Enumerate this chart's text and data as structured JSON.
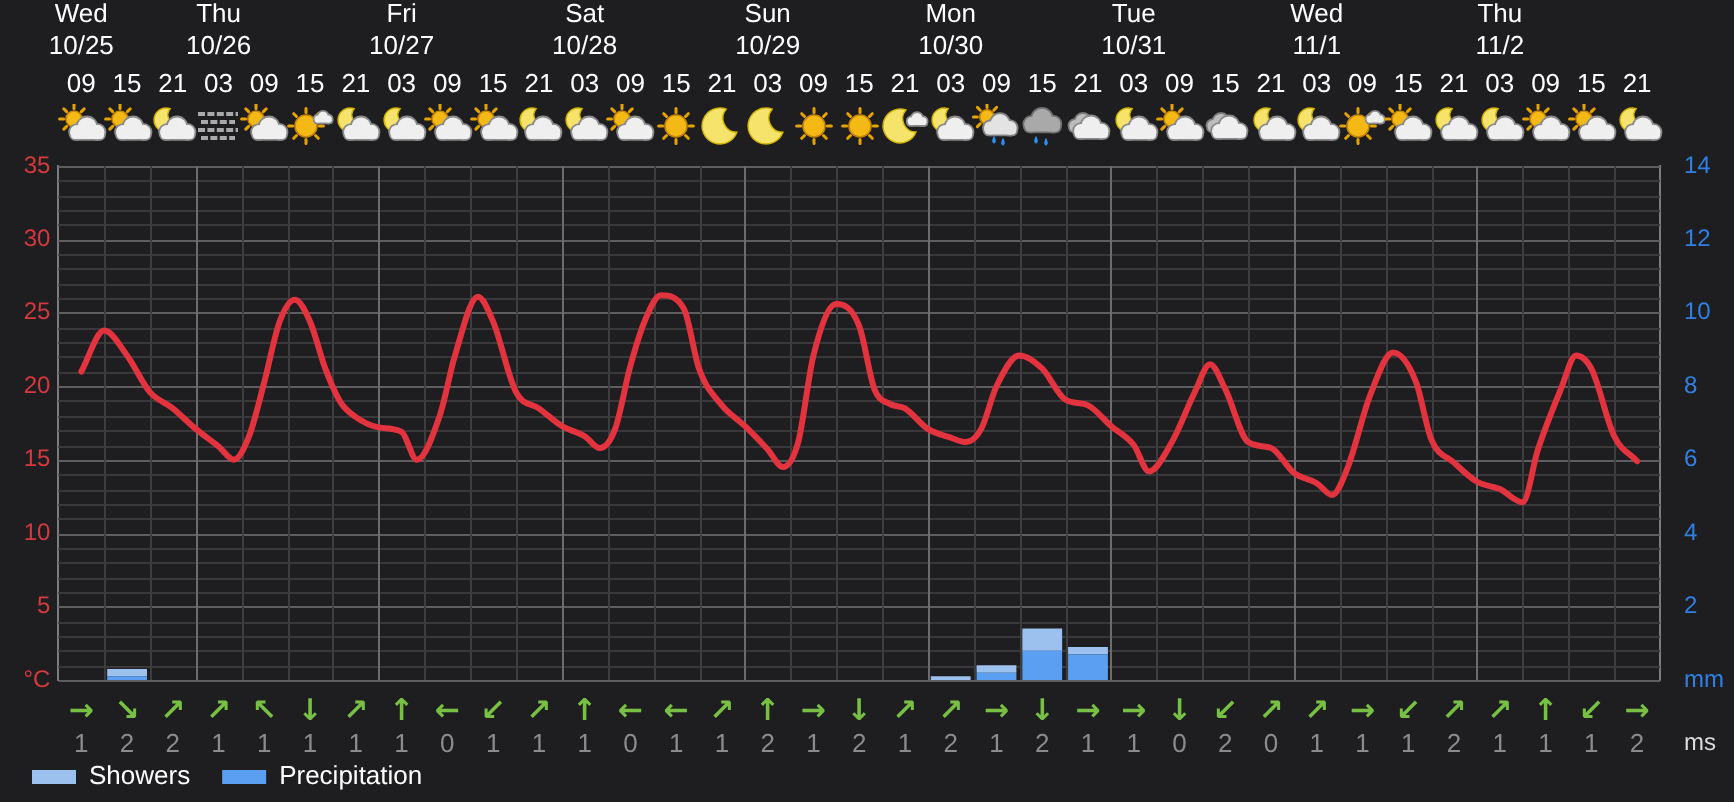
{
  "chart_data": [
    {
      "type": "bar",
      "stacked": true,
      "x": [
        "--10-25T09:00",
        "--10-25T15:00",
        "--10-25T21:00",
        "--10-26T03:00",
        "--10-26T09:00",
        "--10-26T15:00",
        "--10-26T21:00",
        "--10-27T03:00",
        "--10-27T09:00",
        "--10-27T15:00",
        "--10-27T21:00",
        "--10-28T03:00",
        "--10-28T09:00",
        "--10-28T15:00",
        "--10-28T21:00",
        "--10-29T03:00",
        "--10-29T09:00",
        "--10-29T15:00",
        "--10-29T21:00",
        "--10-30T03:00",
        "--10-30T09:00",
        "--10-30T15:00",
        "--10-30T21:00",
        "--10-31T03:00",
        "--10-31T09:00",
        "--10-31T15:00",
        "--10-31T21:00",
        "--11-01T03:00",
        "--11-01T09:00",
        "--11-01T15:00",
        "--11-01T21:00",
        "--11-02T03:00",
        "--11-02T09:00",
        "--11-02T15:00",
        "--11-02T21:00"
      ],
      "series": [
        {
          "name": "Precipitation",
          "color": "#5b9ff2",
          "axis": "y2",
          "values": [
            0,
            0.1,
            0,
            0,
            0,
            0,
            0,
            0,
            0,
            0,
            0,
            0,
            0,
            0,
            0,
            0,
            0,
            0,
            0,
            0,
            0.2,
            0.8,
            0.7,
            0,
            0,
            0,
            0,
            0,
            0,
            0,
            0,
            0,
            0,
            0,
            0
          ]
        },
        {
          "name": "Showers",
          "color": "#9dc1ee",
          "axis": "y2",
          "values": [
            0,
            0.2,
            0,
            0,
            0,
            0,
            0,
            0,
            0,
            0,
            0,
            0,
            0,
            0,
            0,
            0,
            0,
            0,
            0,
            0.1,
            0.2,
            0.6,
            0.2,
            0,
            0,
            0,
            0,
            0,
            0,
            0,
            0,
            0,
            0,
            0,
            0
          ]
        },
        {
          "type": "line",
          "color": "#e2333f",
          "x": [
            "--10-25T09:00",
            "--10-25T12:00",
            "--10-25T15:00",
            "--10-25T18:00",
            "--10-25T21:00",
            "--10-26T00:00",
            "--10-26T03:00",
            "--10-26T05:00",
            "--10-26T07:00",
            "--10-26T09:00",
            "--10-26T11:00",
            "--10-26T13:00",
            "--10-26T15:00",
            "--10-26T17:00",
            "--10-26T19:00",
            "--10-26T21:00",
            "--10-27T00:00",
            "--10-27T03:00",
            "--10-27T05:00",
            "--10-27T08:00",
            "--10-27T10:00",
            "--10-27T13:00",
            "--10-27T15:00",
            "--10-27T18:00",
            "--10-27T21:00",
            "--10-28T00:00",
            "--10-28T03:00",
            "--10-28T05:00",
            "--10-28T07:00",
            "--10-28T09:00",
            "--10-28T11:00",
            "--10-28T13:00",
            "--10-28T16:00",
            "--10-28T18:00",
            "--10-28T21:00",
            "--10-29T00:00",
            "--10-29T03:00",
            "--10-29T05:00",
            "--10-29T07:00",
            "--10-29T09:00",
            "--10-29T12:00",
            "--10-29T15:00",
            "--10-29T17:00",
            "--10-29T19:00",
            "--10-29T21:00",
            "--10-30T00:00",
            "--10-30T03:00",
            "--10-30T05:00",
            "--10-30T07:00",
            "--10-30T09:00",
            "--10-30T12:00",
            "--10-30T15:00",
            "--10-30T18:00",
            "--10-30T21:00",
            "--10-31T00:00",
            "--10-31T03:00",
            "--10-31T05:00",
            "--10-31T08:00",
            "--10-31T11:00",
            "--10-31T13:00",
            "--10-31T15:00",
            "--10-31T18:00",
            "--10-31T21:00",
            "--11-01T00:00",
            "--11-01T03:00",
            "--11-01T05:00",
            "--11-01T07:00",
            "--11-01T10:00",
            "--11-01T13:00",
            "--11-01T16:00",
            "--11-01T18:00",
            "--11-01T21:00",
            "--11-02T00:00",
            "--11-02T03:00",
            "--11-02T06:00",
            "--11-02T08:00",
            "--11-02T11:00",
            "--11-02T13:00",
            "--11-02T15:00",
            "--11-02T18:00",
            "--11-02T21:00"
          ],
          "values": [
            21.0,
            23.8,
            22.1,
            19.6,
            18.5,
            17.1,
            15.9,
            15.0,
            16.6,
            20.3,
            24.4,
            25.9,
            24.4,
            21.2,
            18.9,
            17.9,
            17.2,
            16.9,
            15.0,
            18.0,
            22.1,
            26.1,
            24.4,
            19.6,
            18.5,
            17.3,
            16.6,
            15.8,
            17.1,
            21.4,
            24.6,
            26.2,
            25.3,
            21.2,
            18.7,
            17.3,
            15.7,
            14.5,
            16.2,
            22.1,
            25.6,
            24.1,
            19.8,
            18.8,
            18.5,
            17.1,
            16.5,
            16.2,
            17.1,
            20.0,
            22.1,
            21.2,
            19.1,
            18.7,
            17.3,
            16.0,
            14.2,
            16.2,
            19.6,
            21.5,
            19.8,
            16.2,
            15.8,
            14.1,
            13.4,
            12.6,
            14.4,
            19.4,
            22.3,
            20.3,
            16.4,
            14.8,
            13.5,
            13.0,
            12.1,
            15.7,
            19.8,
            22.1,
            21.2,
            16.6,
            14.9
          ]
        }
      ],
      "xlim": [
        "--10-25T06:00",
        "--11-03T00:00"
      ],
      "xticks": [
        {
          "value": "--10-25T09:00",
          "label": "09"
        },
        {
          "value": "--10-25T15:00",
          "label": "15"
        },
        {
          "value": "--10-25T21:00",
          "label": "21"
        },
        {
          "value": "--10-26T03:00",
          "label": "03"
        },
        {
          "value": "--10-26T09:00",
          "label": "09"
        },
        {
          "value": "--10-26T15:00",
          "label": "15"
        },
        {
          "value": "--10-26T21:00",
          "label": "21"
        },
        {
          "value": "--10-27T03:00",
          "label": "03"
        },
        {
          "value": "--10-27T09:00",
          "label": "09"
        },
        {
          "value": "--10-27T15:00",
          "label": "15"
        },
        {
          "value": "--10-27T21:00",
          "label": "21"
        },
        {
          "value": "--10-28T03:00",
          "label": "03"
        },
        {
          "value": "--10-28T09:00",
          "label": "09"
        },
        {
          "value": "--10-28T15:00",
          "label": "15"
        },
        {
          "value": "--10-28T21:00",
          "label": "21"
        },
        {
          "value": "--10-29T03:00",
          "label": "03"
        },
        {
          "value": "--10-29T09:00",
          "label": "09"
        },
        {
          "value": "--10-29T15:00",
          "label": "15"
        },
        {
          "value": "--10-29T21:00",
          "label": "21"
        },
        {
          "value": "--10-30T03:00",
          "label": "03"
        },
        {
          "value": "--10-30T09:00",
          "label": "09"
        },
        {
          "value": "--10-30T15:00",
          "label": "15"
        },
        {
          "value": "--10-30T21:00",
          "label": "21"
        },
        {
          "value": "--10-31T03:00",
          "label": "03"
        },
        {
          "value": "--10-31T09:00",
          "label": "09"
        },
        {
          "value": "--10-31T15:00",
          "label": "15"
        },
        {
          "value": "--10-31T21:00",
          "label": "21"
        },
        {
          "value": "--11-01T03:00",
          "label": "03"
        },
        {
          "value": "--11-01T09:00",
          "label": "09"
        },
        {
          "value": "--11-01T15:00",
          "label": "15"
        },
        {
          "value": "--11-01T21:00",
          "label": "21"
        },
        {
          "value": "--11-02T03:00",
          "label": "03"
        },
        {
          "value": "--11-02T09:00",
          "label": "09"
        },
        {
          "value": "--11-02T15:00",
          "label": "15"
        },
        {
          "value": "--11-02T21:00",
          "label": "21"
        }
      ],
      "x2lim": [
        "--10-25T06:00",
        "--11-03T00:00"
      ],
      "x2ticks": [
        {
          "value": "--10-25T09:00",
          "label": "Wed\n10/25"
        },
        {
          "value": "--10-26T03:00",
          "label": "Thu\n10/26"
        },
        {
          "value": "--10-27T03:00",
          "label": "Fri\n10/27"
        },
        {
          "value": "--10-28T03:00",
          "label": "Sat\n10/28"
        },
        {
          "value": "--10-29T03:00",
          "label": "Sun\n10/29"
        },
        {
          "value": "--10-30T03:00",
          "label": "Mon\n10/30"
        },
        {
          "value": "--10-31T03:00",
          "label": "Tue\n10/31"
        },
        {
          "value": "--11-01T03:00",
          "label": "Wed\n11/1"
        },
        {
          "value": "--11-02T03:00",
          "label": "Thu\n11/2"
        }
      ],
      "ylim": [
        0,
        35
      ],
      "yticks": [
        {
          "value": 0,
          "label": "°C"
        },
        {
          "value": 1,
          "label": null
        },
        {
          "value": 2,
          "label": null
        },
        {
          "value": 3,
          "label": null
        },
        {
          "value": 4,
          "label": null
        },
        5,
        {
          "value": 6,
          "label": null
        },
        {
          "value": 7,
          "label": null
        },
        {
          "value": 8,
          "label": null
        },
        {
          "value": 9,
          "label": null
        },
        10,
        {
          "value": 11,
          "label": null
        },
        {
          "value": 12,
          "label": null
        },
        {
          "value": 13,
          "label": null
        },
        {
          "value": 14,
          "label": null
        },
        15,
        {
          "value": 16,
          "label": null
        },
        {
          "value": 17,
          "label": null
        },
        {
          "value": 18,
          "label": null
        },
        {
          "value": 19,
          "label": null
        },
        20,
        {
          "value": 21,
          "label": null
        },
        {
          "value": 22,
          "label": null
        },
        {
          "value": 23,
          "label": null
        },
        {
          "value": 24,
          "label": null
        },
        25,
        {
          "value": 26,
          "label": null
        },
        {
          "value": 27,
          "label": null
        },
        {
          "value": 28,
          "label": null
        },
        {
          "value": 29,
          "label": null
        },
        30,
        {
          "value": 31,
          "label": null
        },
        {
          "value": 32,
          "label": null
        },
        {
          "value": 33,
          "label": null
        },
        {
          "value": 34,
          "label": null
        },
        35
      ],
      "y2lim": [
        0,
        14
      ],
      "y2ticks": [
        {
          "value": 0,
          "label": "mm"
        },
        2,
        4,
        6,
        8,
        10,
        12,
        14
      ],
      "grid": true,
      "legend": "bottom left",
      "marker": "none"
    },
    {
      "type": "other",
      "categories": [
        "→",
        "↘",
        "↗",
        "↗",
        "↖",
        "↓",
        "↗",
        "↑",
        "←",
        "↙",
        "↗",
        "↑",
        "←",
        "←",
        "↗",
        "↑",
        "→",
        "↓",
        "↗",
        "↗",
        "→",
        "↓",
        "→",
        "→",
        "↓",
        "↙",
        "↗",
        "↗",
        "→",
        "↙",
        "↗",
        "↗",
        "↑",
        "↙",
        "→"
      ],
      "values": [
        1,
        2,
        2,
        1,
        1,
        1,
        1,
        1,
        0,
        1,
        1,
        1,
        0,
        1,
        1,
        2,
        1,
        2,
        1,
        2,
        1,
        2,
        1,
        1,
        0,
        2,
        0,
        1,
        1,
        1,
        2,
        1,
        1,
        1,
        2
      ],
      "data_labels": true,
      "annotations": [
        "ms"
      ]
    }
  ]
}
